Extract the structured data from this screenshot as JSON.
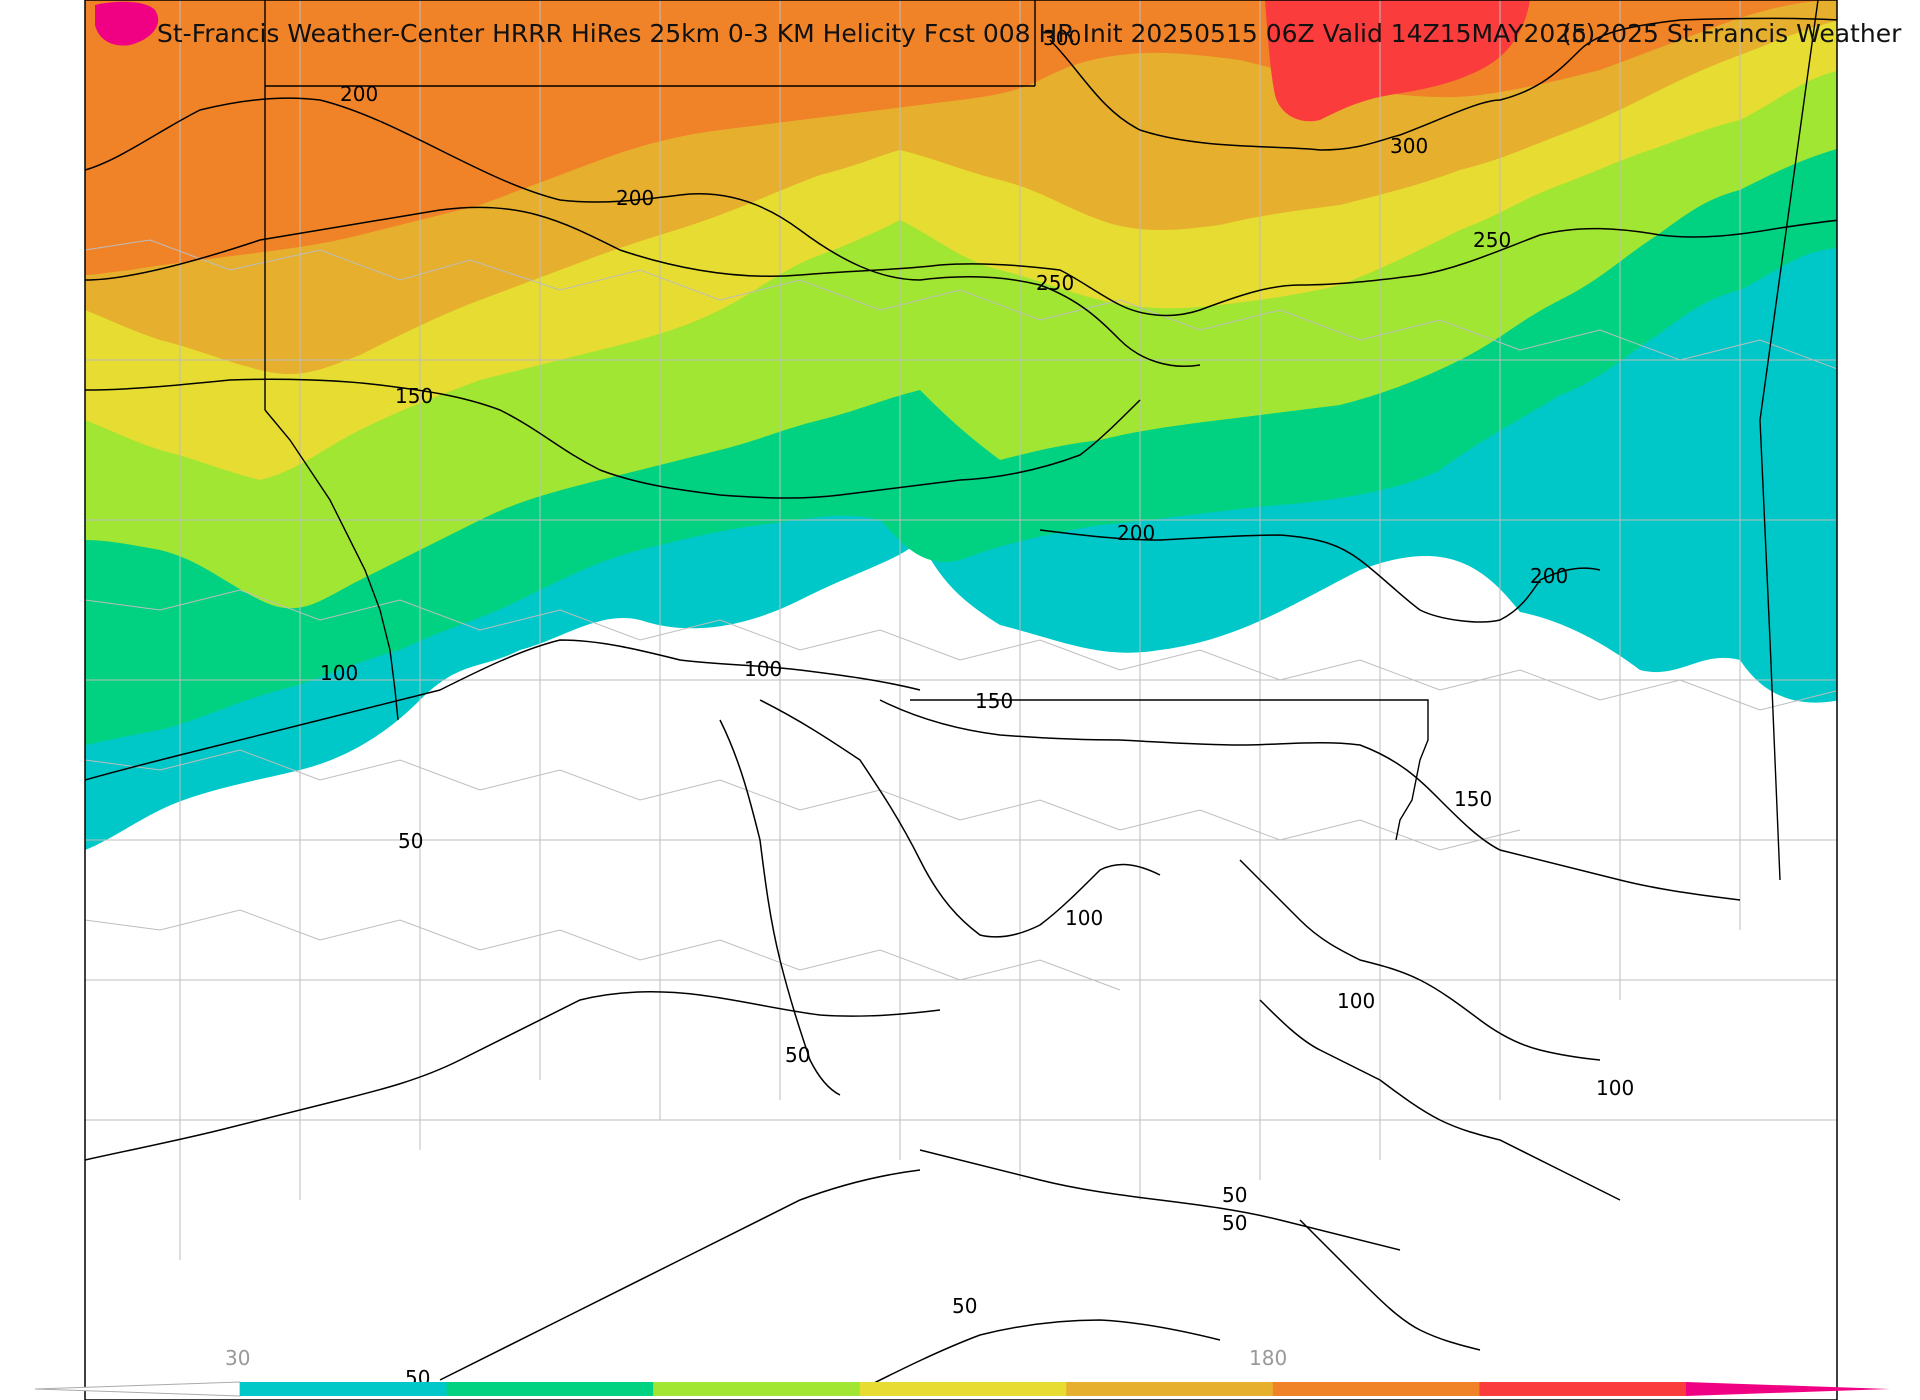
{
  "title": "St-Francis Weather-Center HRRR HiRes 25km 0-3 KM Helicity Fcst 008 HR Init 20250515 06Z  Valid 14Z15MAY2025",
  "copyright": "(c)2025 St.Francis Weather",
  "colorbar": {
    "tick_labels": [
      "30",
      "180"
    ],
    "colors": [
      "#00c8c8",
      "#00d282",
      "#a0e632",
      "#e6dc32",
      "#e6af2d",
      "#f08228",
      "#fa3c3c",
      "#f00082"
    ]
  },
  "contour_labels": [
    "200",
    "200",
    "150",
    "100",
    "100",
    "150",
    "250",
    "300",
    "250",
    "200",
    "200",
    "150",
    "50",
    "100",
    "100",
    "50",
    "100",
    "50",
    "50",
    "50",
    "50",
    "300"
  ]
}
